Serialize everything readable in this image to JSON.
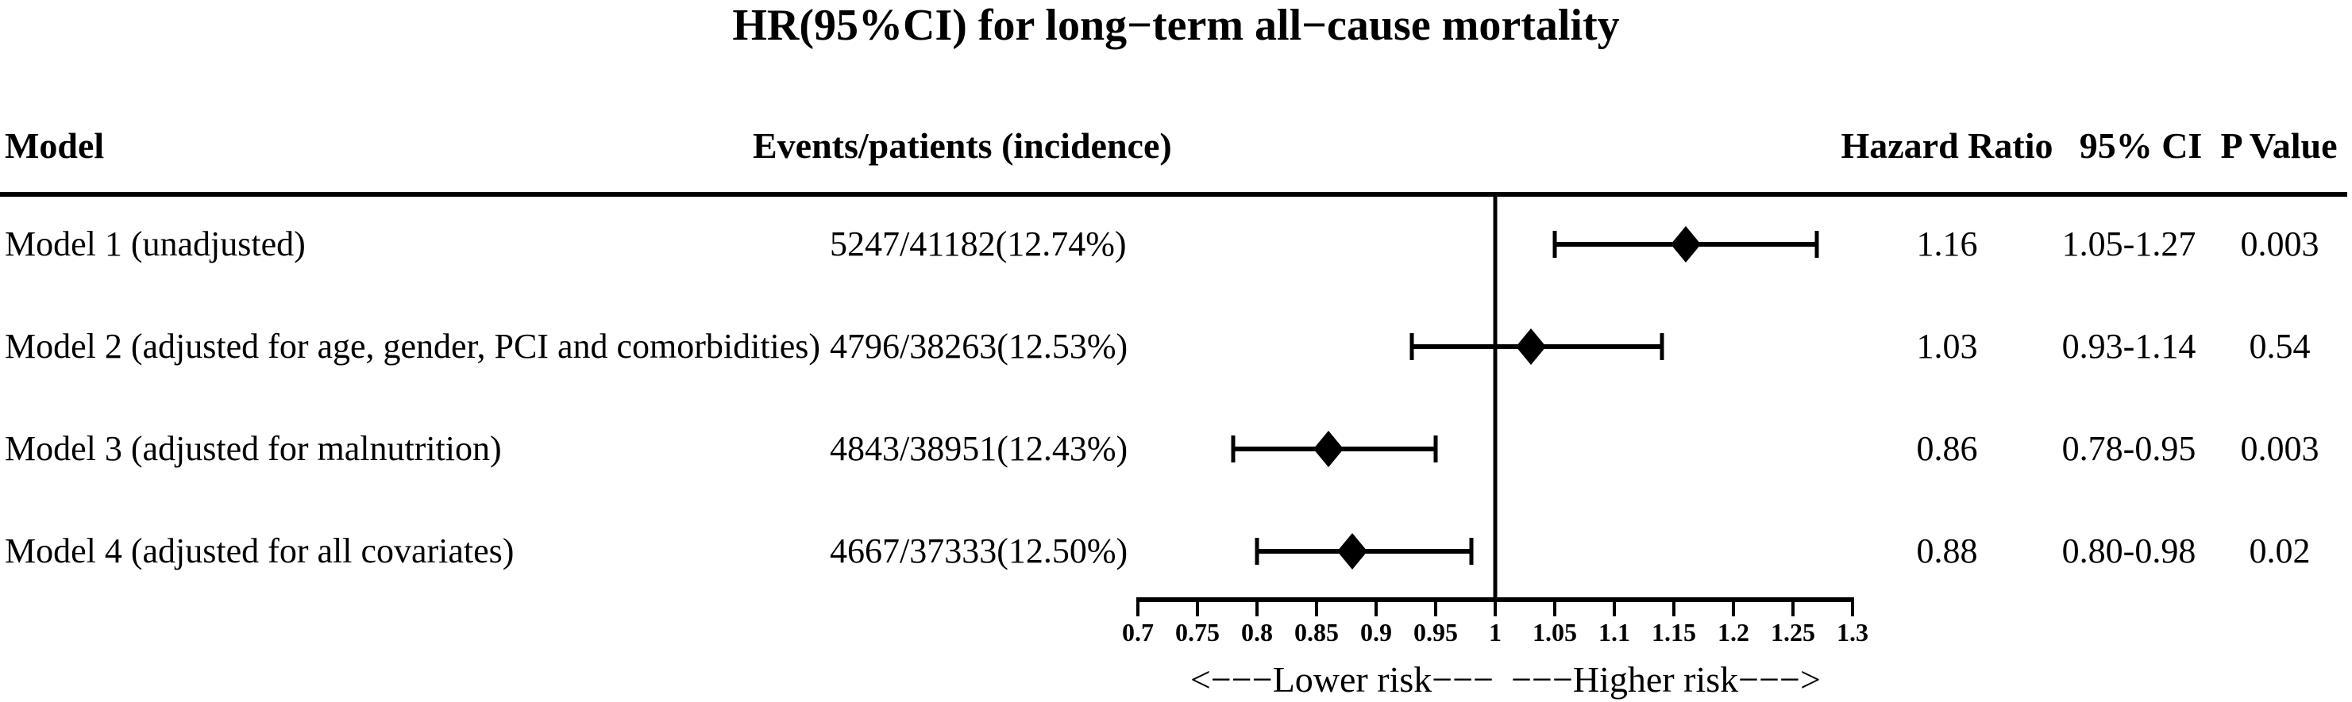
{
  "title": "HR(95%CI) for long−term all−cause mortality",
  "colors": {
    "foreground": "#000000",
    "background": "#ffffff",
    "marker": "#000000"
  },
  "table": {
    "headers": {
      "model": "Model",
      "events": "Events/patients (incidence)",
      "hazard_ratio": "Hazard Ratio",
      "ci": "95% CI",
      "p_value": "P Value"
    },
    "rows": [
      {
        "model": "Model 1 (unadjusted)",
        "events": "5247/41182(12.74%)",
        "hazard_ratio": "1.16",
        "ci": "1.05-1.27",
        "p_value": "0.003"
      },
      {
        "model": "Model 2 (adjusted for age, gender, PCI and comorbidities)",
        "events": "4796/38263(12.53%)",
        "hazard_ratio": "1.03",
        "ci": "0.93-1.14",
        "p_value": "0.54"
      },
      {
        "model": "Model 3 (adjusted for malnutrition)",
        "events": "4843/38951(12.43%)",
        "hazard_ratio": "0.86",
        "ci": "0.78-0.95",
        "p_value": "0.003"
      },
      {
        "model": "Model 4 (adjusted for all covariates)",
        "events": "4667/37333(12.50%)",
        "hazard_ratio": "0.88",
        "ci": "0.80-0.98",
        "p_value": "0.02"
      }
    ]
  },
  "chart_data": {
    "type": "scatter",
    "subtype": "forest-plot",
    "title": "HR(95%CI) for long−term all−cause mortality",
    "series": [
      {
        "name": "Model 1 (unadjusted)",
        "hr": 1.16,
        "ci_low": 1.05,
        "ci_high": 1.27,
        "p": 0.003
      },
      {
        "name": "Model 2 (adjusted for age, gender, PCI and comorbidities)",
        "hr": 1.03,
        "ci_low": 0.93,
        "ci_high": 1.14,
        "p": 0.54
      },
      {
        "name": "Model 3 (adjusted for malnutrition)",
        "hr": 0.86,
        "ci_low": 0.78,
        "ci_high": 0.95,
        "p": 0.003
      },
      {
        "name": "Model 4 (adjusted for all covariates)",
        "hr": 0.88,
        "ci_low": 0.8,
        "ci_high": 0.98,
        "p": 0.02
      }
    ],
    "x_axis": {
      "range": [
        0.7,
        1.3
      ],
      "tick_values": [
        0.7,
        0.75,
        0.8,
        0.85,
        0.9,
        0.95,
        1,
        1.05,
        1.1,
        1.15,
        1.2,
        1.25,
        1.3
      ],
      "tick_labels": [
        "0.7",
        "0.75",
        "0.8",
        "0.85",
        "0.9",
        "0.95",
        "1",
        "1.05",
        "1.1",
        "1.15",
        "1.2",
        "1.25",
        "1.3"
      ],
      "reference_line": 1
    },
    "grid": false,
    "legend": false,
    "annotations": {
      "lower": "<−−−Lower risk−−−",
      "higher": "−−−Higher risk−−−>"
    }
  }
}
